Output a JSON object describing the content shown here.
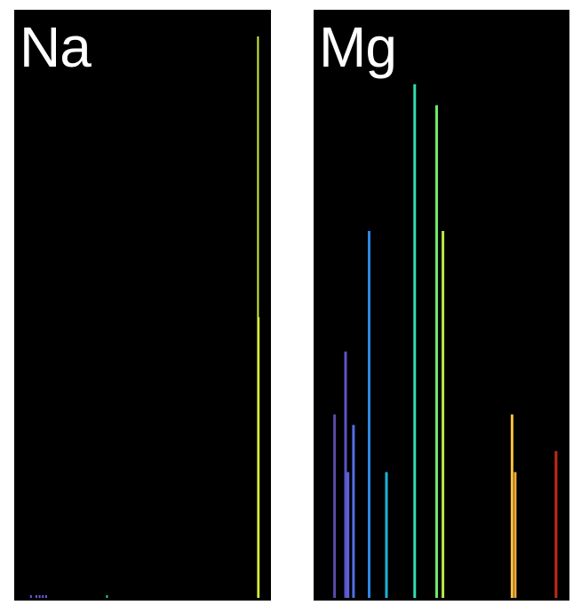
{
  "panels": [
    {
      "label": "Na",
      "lines": [
        {
          "wavelength_nm": 589.0,
          "intensity": 1.0,
          "color": "#d4ec3a"
        },
        {
          "wavelength_nm": 589.6,
          "intensity": 0.5,
          "color": "#d4ec3a"
        },
        {
          "wavelength_nm": 380.0,
          "intensity": 0.004,
          "color": "#6b5cd6"
        },
        {
          "wavelength_nm": 385.0,
          "intensity": 0.004,
          "color": "#6b5cd6"
        },
        {
          "wavelength_nm": 388.0,
          "intensity": 0.004,
          "color": "#6b5cd6"
        },
        {
          "wavelength_nm": 391.0,
          "intensity": 0.004,
          "color": "#6b5cd6"
        },
        {
          "wavelength_nm": 394.0,
          "intensity": 0.004,
          "color": "#6b5cd6"
        },
        {
          "wavelength_nm": 450.0,
          "intensity": 0.004,
          "color": "#2bcf9a"
        }
      ]
    },
    {
      "label": "Mg",
      "lines": [
        {
          "wavelength_nm": 383.0,
          "intensity": 0.35,
          "color": "#5a4aa8"
        },
        {
          "wavelength_nm": 390.0,
          "intensity": 0.47,
          "color": "#5c54c4"
        },
        {
          "wavelength_nm": 391.5,
          "intensity": 0.24,
          "color": "#5a62d8"
        },
        {
          "wavelength_nm": 395.0,
          "intensity": 0.33,
          "color": "#4f6fe0"
        },
        {
          "wavelength_nm": 405.0,
          "intensity": 0.7,
          "color": "#2f86e6"
        },
        {
          "wavelength_nm": 416.0,
          "intensity": 0.24,
          "color": "#1fb2d8"
        },
        {
          "wavelength_nm": 434.0,
          "intensity": 0.98,
          "color": "#2fdfb0"
        },
        {
          "wavelength_nm": 448.0,
          "intensity": 0.94,
          "color": "#6ee86a"
        },
        {
          "wavelength_nm": 452.0,
          "intensity": 0.7,
          "color": "#b9ec44"
        },
        {
          "wavelength_nm": 496.0,
          "intensity": 0.35,
          "color": "#f5c23e"
        },
        {
          "wavelength_nm": 498.0,
          "intensity": 0.24,
          "color": "#f5a83a"
        },
        {
          "wavelength_nm": 524.0,
          "intensity": 0.28,
          "color": "#c22a1a"
        }
      ]
    }
  ]
}
